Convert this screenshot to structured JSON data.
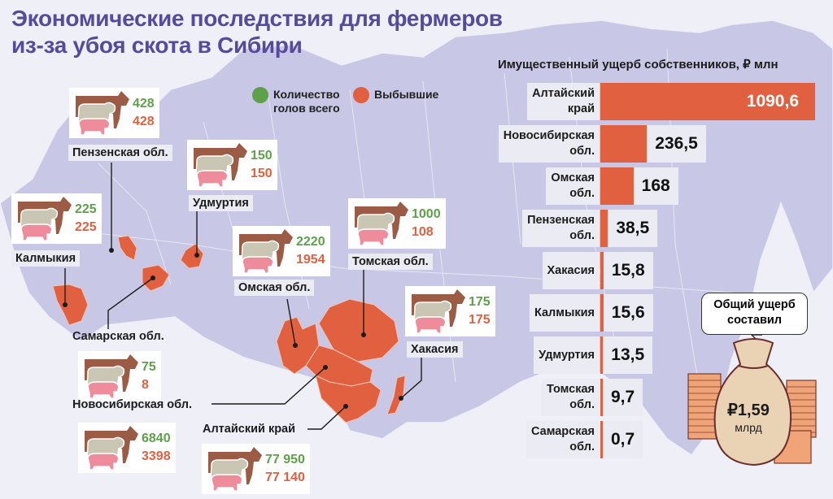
{
  "title": [
    "Экономические последствия для фермеров",
    "из-за убоя скота в Сибири"
  ],
  "legend": {
    "total_label": [
      "Количество",
      "голов всего"
    ],
    "lost_label": "Выбывшие",
    "total_color": "#5ea14a",
    "lost_color": "#e0603f"
  },
  "regions": [
    {
      "name": "Пензенская обл.",
      "total": "428",
      "lost": "428"
    },
    {
      "name": "Удмуртия",
      "total": "150",
      "lost": "150"
    },
    {
      "name": "Калмыкия",
      "total": "225",
      "lost": "225"
    },
    {
      "name": "Томская обл.",
      "total": "1000",
      "lost": "108"
    },
    {
      "name": "Омская обл.",
      "total": "2220",
      "lost": "1954"
    },
    {
      "name": "Хакасия",
      "total": "175",
      "lost": "175"
    },
    {
      "name": "Самарская обл.",
      "total": "75",
      "lost": "8"
    },
    {
      "name": "Новосибирская обл.",
      "total": "6840",
      "lost": "3398"
    },
    {
      "name": "Алтайский край",
      "total": "77 950",
      "lost": "77 140"
    }
  ],
  "chart_data": {
    "type": "bar",
    "orientation": "horizontal",
    "title": "Имущественный ущерб собственников, ₽ млн",
    "categories": [
      "Алтайский\nкрай",
      "Новосибирская\nобл.",
      "Омская\nобл.",
      "Пензенская\nобл.",
      "Хакасия",
      "Калмыкия",
      "Удмуртия",
      "Томская\nобл.",
      "Самарская\nобл."
    ],
    "values": [
      1090.6,
      236.5,
      168,
      38.5,
      15.8,
      15.6,
      13.5,
      9.7,
      0.7
    ],
    "value_labels": [
      "1090,6",
      "236,5",
      "168",
      "38,5",
      "15,8",
      "15,6",
      "13,5",
      "9,7",
      "0,7"
    ],
    "bar_color": "#e0603f"
  },
  "total": {
    "caption": [
      "Общий ущерб",
      "составил"
    ],
    "value": "₽1,59",
    "unit": "млрд"
  }
}
